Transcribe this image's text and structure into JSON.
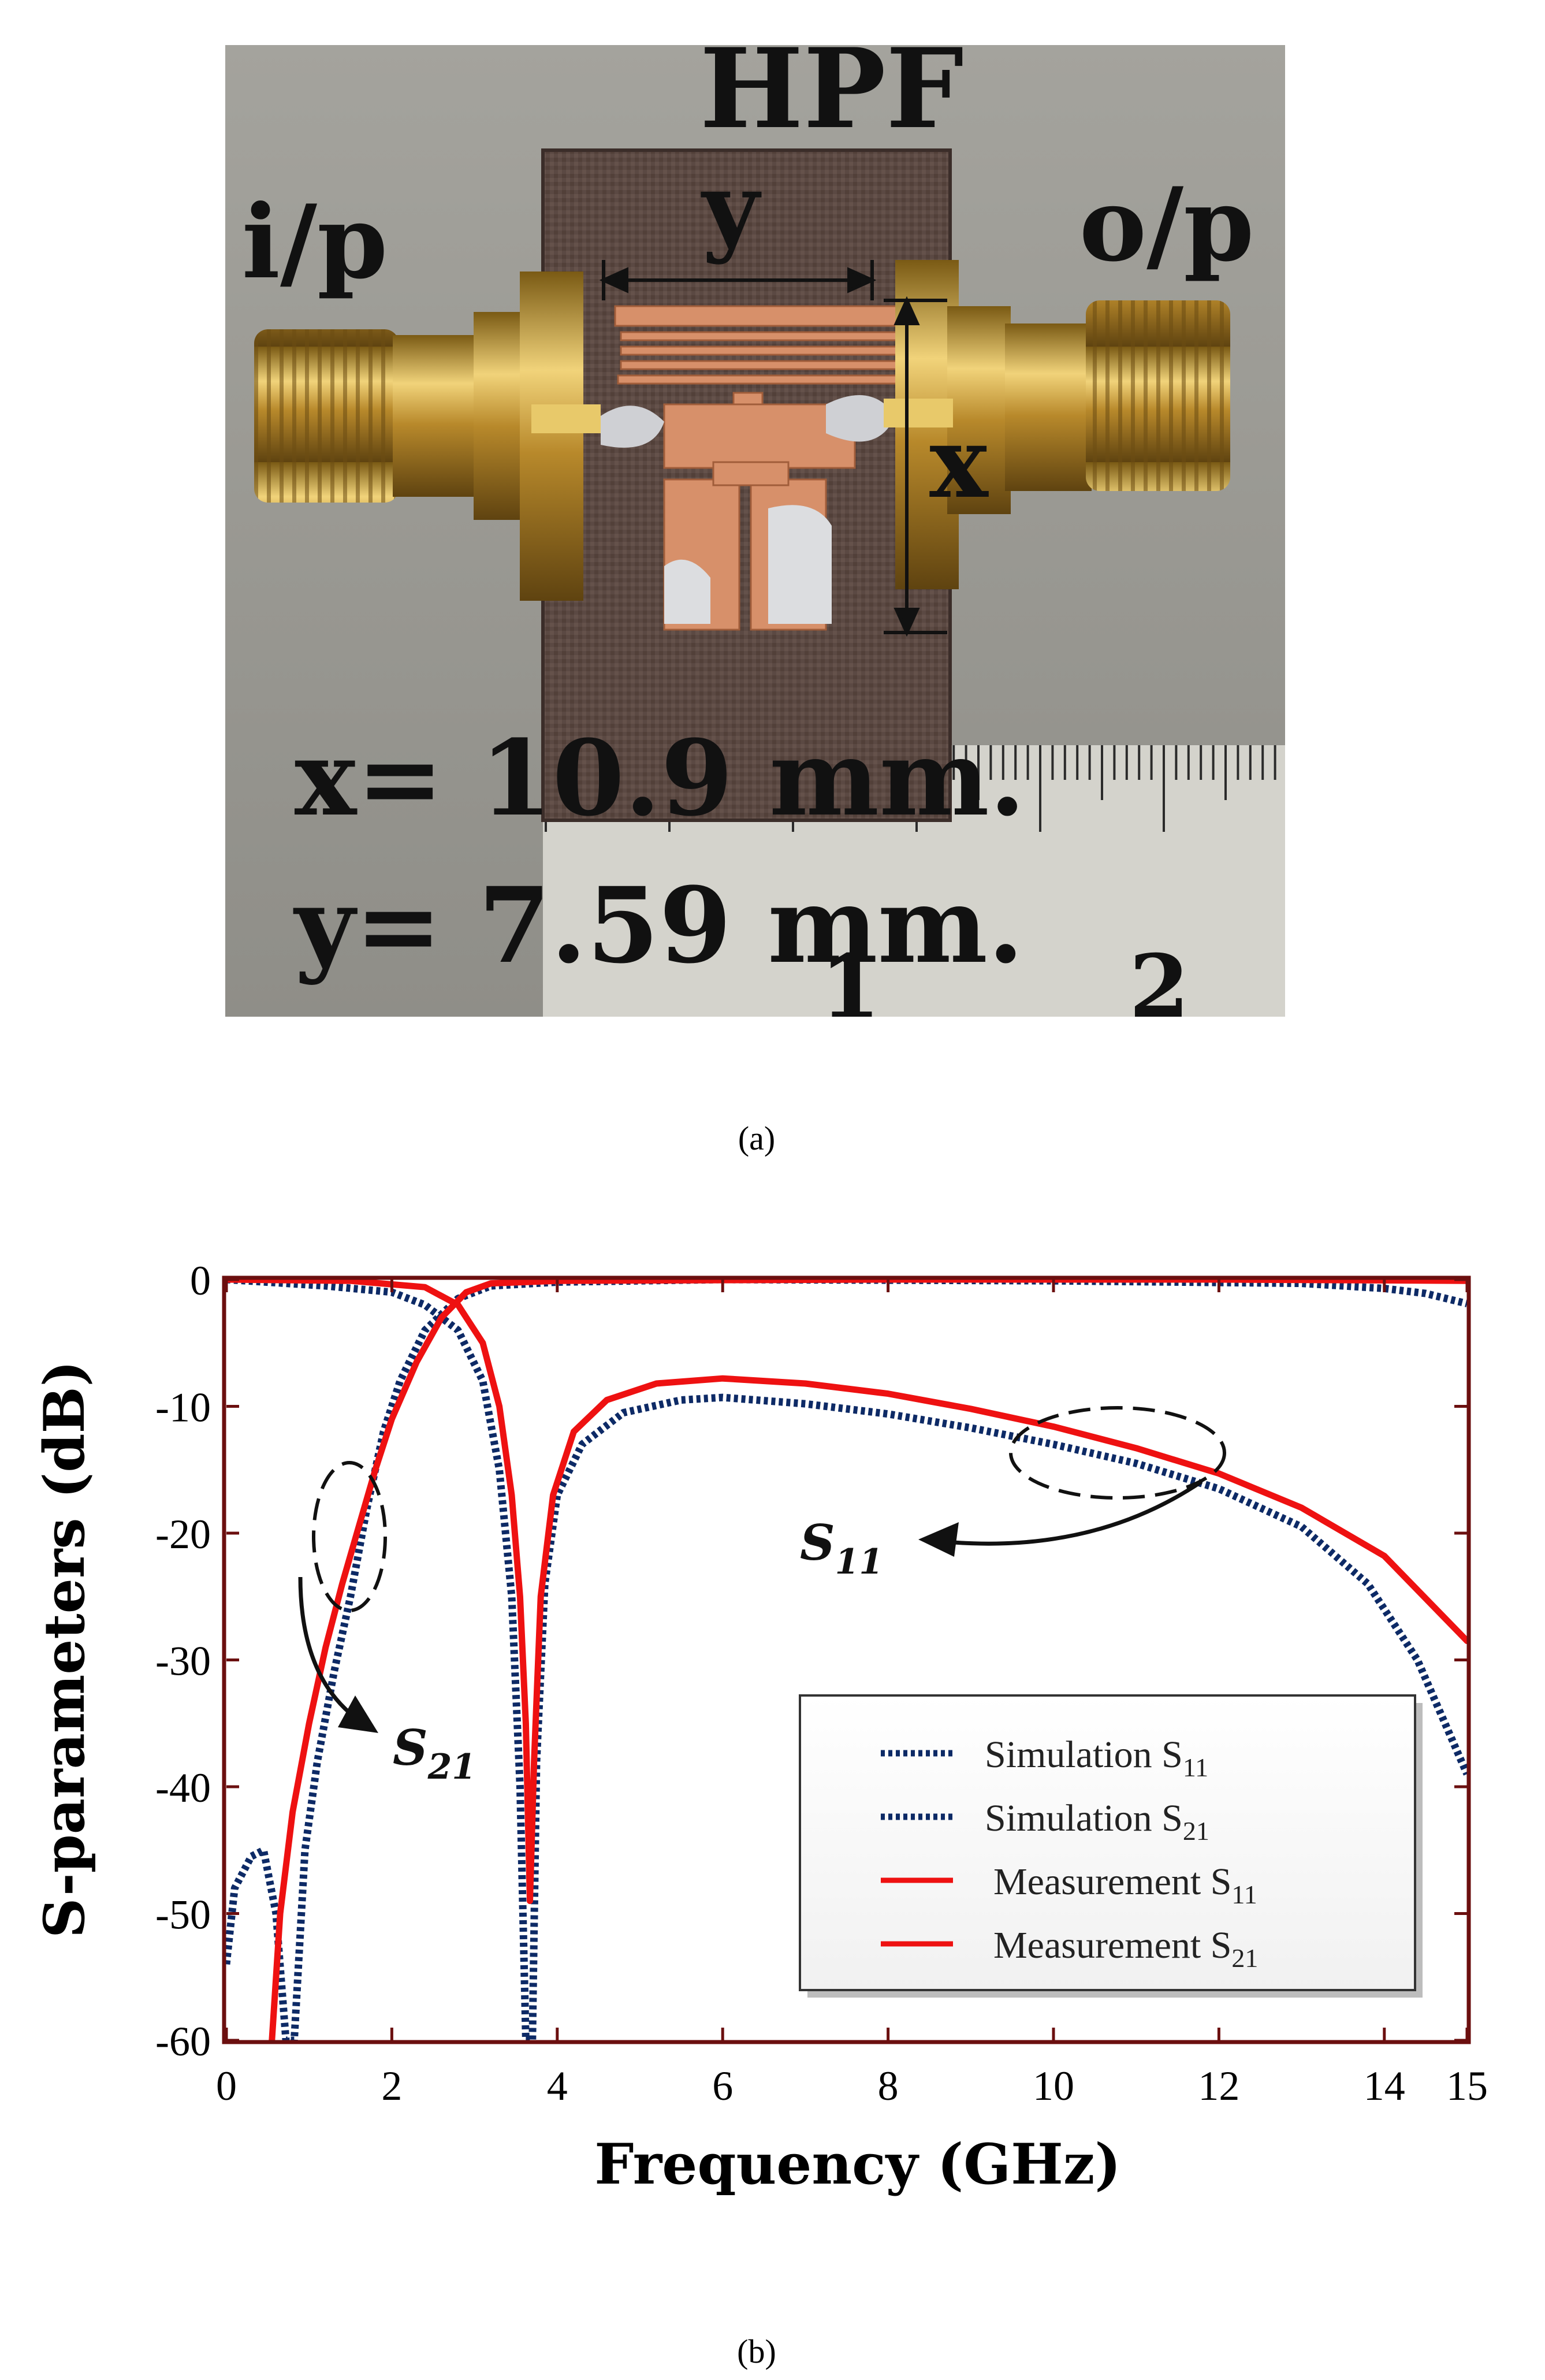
{
  "photo": {
    "title": "HPF",
    "input_label": "i/p",
    "output_label": "o/p",
    "dim_y_label": "y",
    "dim_x_label": "x",
    "dim_x_text": "x= 10.9 mm.",
    "dim_y_text": "y= 7.59 mm.",
    "ruler_marks": [
      "1",
      "2"
    ],
    "caption": "(a)"
  },
  "chart_data": {
    "type": "line",
    "title": "",
    "xlabel": "Frequency (GHz)",
    "ylabel": "S-parameters (dB)",
    "xlim": [
      0,
      15
    ],
    "ylim": [
      -60,
      0
    ],
    "xticks": [
      "0",
      "2",
      "4",
      "6",
      "8",
      "10",
      "12",
      "14",
      "15"
    ],
    "yticks": [
      "0",
      "-10",
      "-20",
      "-30",
      "-40",
      "-50",
      "-60"
    ],
    "grid": false,
    "legend_position": "bottom-right",
    "caption": "(b)",
    "annotations": {
      "s11": "S",
      "s11_sub": "11",
      "s21": "S",
      "s21_sub": "21"
    },
    "series": [
      {
        "name": "Simulation S11",
        "legend_main": "Simulation S",
        "legend_sub": "11",
        "color": "#0d2a66",
        "style": "dotted",
        "points": [
          [
            0,
            0
          ],
          [
            1.2,
            -0.5
          ],
          [
            2.0,
            -1.0
          ],
          [
            2.4,
            -2.0
          ],
          [
            2.8,
            -4.0
          ],
          [
            3.1,
            -8
          ],
          [
            3.3,
            -15
          ],
          [
            3.45,
            -25
          ],
          [
            3.55,
            -40
          ],
          [
            3.62,
            -60
          ],
          [
            3.7,
            -60
          ],
          [
            3.75,
            -38
          ],
          [
            3.85,
            -24
          ],
          [
            4.0,
            -17
          ],
          [
            4.3,
            -13
          ],
          [
            4.8,
            -10.5
          ],
          [
            5.5,
            -9.5
          ],
          [
            6.0,
            -9.3
          ],
          [
            7.0,
            -9.8
          ],
          [
            8.0,
            -10.6
          ],
          [
            9.0,
            -11.7
          ],
          [
            10.0,
            -13.0
          ],
          [
            11.0,
            -14.5
          ],
          [
            12.0,
            -16.5
          ],
          [
            13.0,
            -19.5
          ],
          [
            13.8,
            -24
          ],
          [
            14.4,
            -30
          ],
          [
            15.0,
            -39
          ]
        ]
      },
      {
        "name": "Simulation S21",
        "legend_main": "Simulation S",
        "legend_sub": "21",
        "color": "#0d2a66",
        "style": "dotted",
        "points": [
          [
            0.0,
            -54
          ],
          [
            0.1,
            -48
          ],
          [
            0.3,
            -45.5
          ],
          [
            0.45,
            -45
          ],
          [
            0.6,
            -50
          ],
          [
            0.72,
            -60
          ],
          [
            0.82,
            -60
          ],
          [
            0.95,
            -45
          ],
          [
            1.1,
            -38
          ],
          [
            1.3,
            -31
          ],
          [
            1.5,
            -25
          ],
          [
            1.7,
            -18
          ],
          [
            1.9,
            -12
          ],
          [
            2.1,
            -8
          ],
          [
            2.4,
            -4
          ],
          [
            2.8,
            -1.5
          ],
          [
            3.2,
            -0.5
          ],
          [
            4.0,
            -0.2
          ],
          [
            6.0,
            0
          ],
          [
            10.0,
            -0.1
          ],
          [
            13.0,
            -0.3
          ],
          [
            14.0,
            -0.7
          ],
          [
            14.5,
            -1.1
          ],
          [
            15.0,
            -1.9
          ]
        ]
      },
      {
        "name": "Measurement S11",
        "legend_main": "Measurement S",
        "legend_sub": "11",
        "color": "#ee1111",
        "style": "solid",
        "points": [
          [
            0,
            0
          ],
          [
            1.5,
            -0.1
          ],
          [
            2.4,
            -0.6
          ],
          [
            2.8,
            -2.0
          ],
          [
            3.1,
            -5
          ],
          [
            3.3,
            -10
          ],
          [
            3.45,
            -17
          ],
          [
            3.55,
            -25
          ],
          [
            3.62,
            -35
          ],
          [
            3.67,
            -49
          ],
          [
            3.72,
            -38
          ],
          [
            3.8,
            -25
          ],
          [
            3.95,
            -17
          ],
          [
            4.2,
            -12
          ],
          [
            4.6,
            -9.5
          ],
          [
            5.2,
            -8.2
          ],
          [
            6.0,
            -7.8
          ],
          [
            7.0,
            -8.2
          ],
          [
            8.0,
            -9.0
          ],
          [
            9.0,
            -10.2
          ],
          [
            10.0,
            -11.6
          ],
          [
            11.0,
            -13.3
          ],
          [
            12.0,
            -15.3
          ],
          [
            13.0,
            -18.0
          ],
          [
            14.0,
            -21.8
          ],
          [
            15.0,
            -28.5
          ]
        ]
      },
      {
        "name": "Measurement S21",
        "legend_main": "Measurement S",
        "legend_sub": "21",
        "color": "#ee1111",
        "style": "solid",
        "points": [
          [
            0.55,
            -60
          ],
          [
            0.65,
            -50
          ],
          [
            0.8,
            -42
          ],
          [
            1.0,
            -35
          ],
          [
            1.2,
            -29
          ],
          [
            1.4,
            -24
          ],
          [
            1.6,
            -19.5
          ],
          [
            1.8,
            -15
          ],
          [
            2.0,
            -11
          ],
          [
            2.3,
            -6.5
          ],
          [
            2.6,
            -3
          ],
          [
            2.9,
            -1
          ],
          [
            3.2,
            -0.3
          ],
          [
            4.0,
            -0.1
          ],
          [
            8.0,
            0
          ],
          [
            12.0,
            0
          ],
          [
            15.0,
            -0.1
          ]
        ]
      }
    ]
  }
}
